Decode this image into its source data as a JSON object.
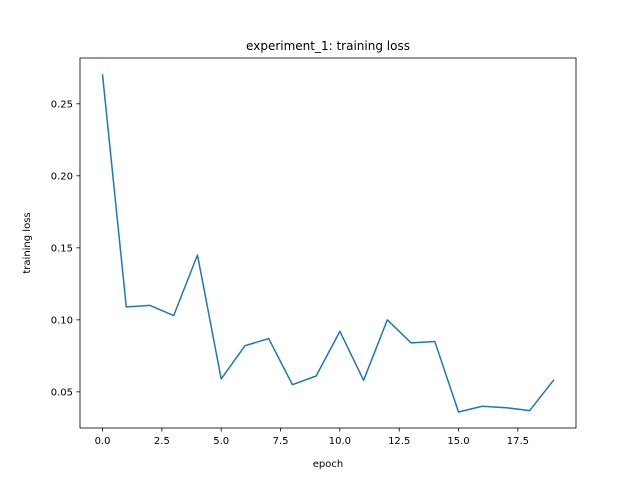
{
  "chart_data": {
    "type": "line",
    "title": "experiment_1: training loss",
    "xlabel": "epoch",
    "ylabel": "training loss",
    "xlim": [
      -0.95,
      19.95
    ],
    "ylim": [
      0.0249,
      0.2818
    ],
    "xticks": [
      0.0,
      2.5,
      5.0,
      7.5,
      10.0,
      12.5,
      15.0,
      17.5
    ],
    "xtick_labels": [
      "0.0",
      "2.5",
      "5.0",
      "7.5",
      "10.0",
      "12.5",
      "15.0",
      "17.5"
    ],
    "yticks": [
      0.05,
      0.1,
      0.15,
      0.2,
      0.25
    ],
    "ytick_labels": [
      "0.05",
      "0.10",
      "0.15",
      "0.20",
      "0.25"
    ],
    "grid": false,
    "series": [
      {
        "color": "#1f77b4",
        "x": [
          0,
          1,
          2,
          3,
          4,
          5,
          6,
          7,
          8,
          9,
          10,
          11,
          12,
          13,
          14,
          15,
          16,
          17,
          18,
          19
        ],
        "y": [
          0.27,
          0.109,
          0.11,
          0.103,
          0.145,
          0.059,
          0.082,
          0.087,
          0.055,
          0.061,
          0.092,
          0.058,
          0.1,
          0.084,
          0.085,
          0.036,
          0.04,
          0.039,
          0.037,
          0.058
        ]
      }
    ]
  }
}
